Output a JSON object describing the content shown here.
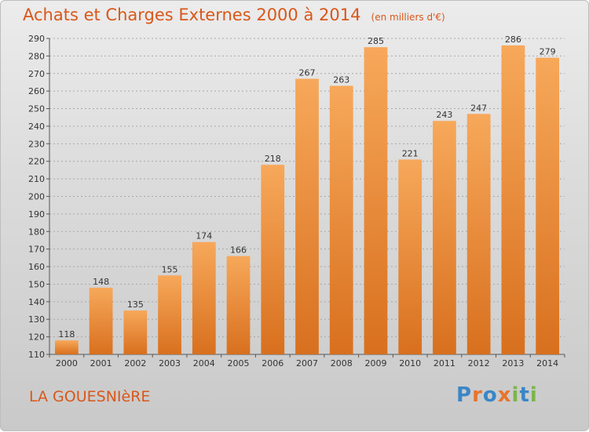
{
  "chart_data": {
    "type": "bar",
    "title": "Achats et Charges Externes 2000 à 2014",
    "subtitle": "(en milliers d'€)",
    "categories": [
      "2000",
      "2001",
      "2002",
      "2003",
      "2004",
      "2005",
      "2006",
      "2007",
      "2008",
      "2009",
      "2010",
      "2011",
      "2012",
      "2013",
      "2014"
    ],
    "values": [
      118,
      148,
      135,
      155,
      174,
      166,
      218,
      267,
      263,
      285,
      221,
      243,
      247,
      286,
      279
    ],
    "ylim": [
      110,
      290
    ],
    "yticks": [
      110,
      120,
      130,
      140,
      150,
      160,
      170,
      180,
      190,
      200,
      210,
      220,
      230,
      240,
      250,
      260,
      270,
      280,
      290
    ],
    "grid": true,
    "colors": {
      "bar_light": "#f7a85a",
      "bar_dark": "#d8701e",
      "accent": "#d9571a"
    }
  },
  "place": "LA GOUESNIèRE",
  "logo": {
    "letters": [
      "P",
      "r",
      "o",
      "x",
      "i",
      "t",
      "i"
    ],
    "colors": [
      "#3a86c8",
      "#e8742b",
      "#3a86c8",
      "#e8742b",
      "#7ab648",
      "#3a86c8",
      "#7ab648"
    ]
  }
}
